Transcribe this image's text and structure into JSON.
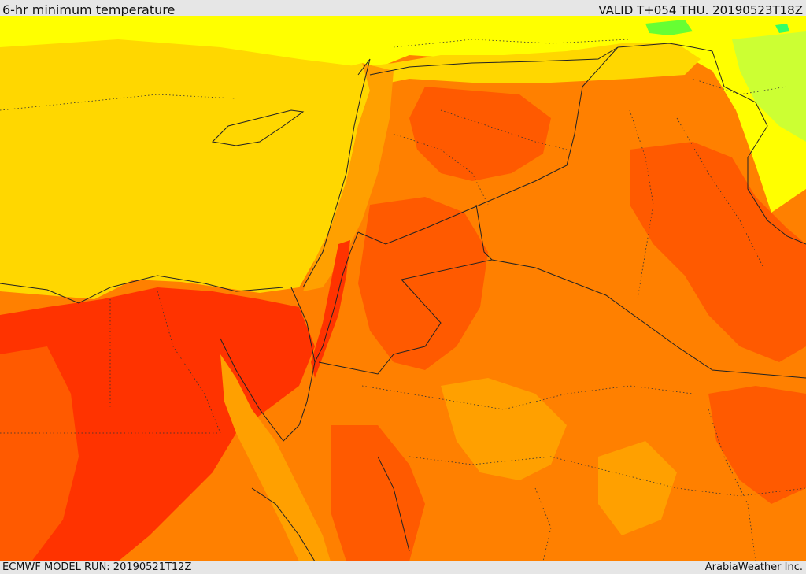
{
  "header": {
    "title": "6-hr minimum temperature",
    "valid": "VALID T+054 THU. 20190523T18Z"
  },
  "footer": {
    "model_run": "ECMWF MODEL RUN: 20190521T12Z",
    "credit": "ArabiaWeather Inc."
  },
  "map": {
    "colors": {
      "deep_red": "#ff3300",
      "red_orange": "#ff5a00",
      "orange": "#ff8000",
      "light_orange": "#ffa000",
      "amber": "#ffc000",
      "yellow_orange": "#ffd700",
      "yellow": "#ffff00",
      "yellow_green": "#ccff33",
      "green": "#33ff66"
    }
  }
}
